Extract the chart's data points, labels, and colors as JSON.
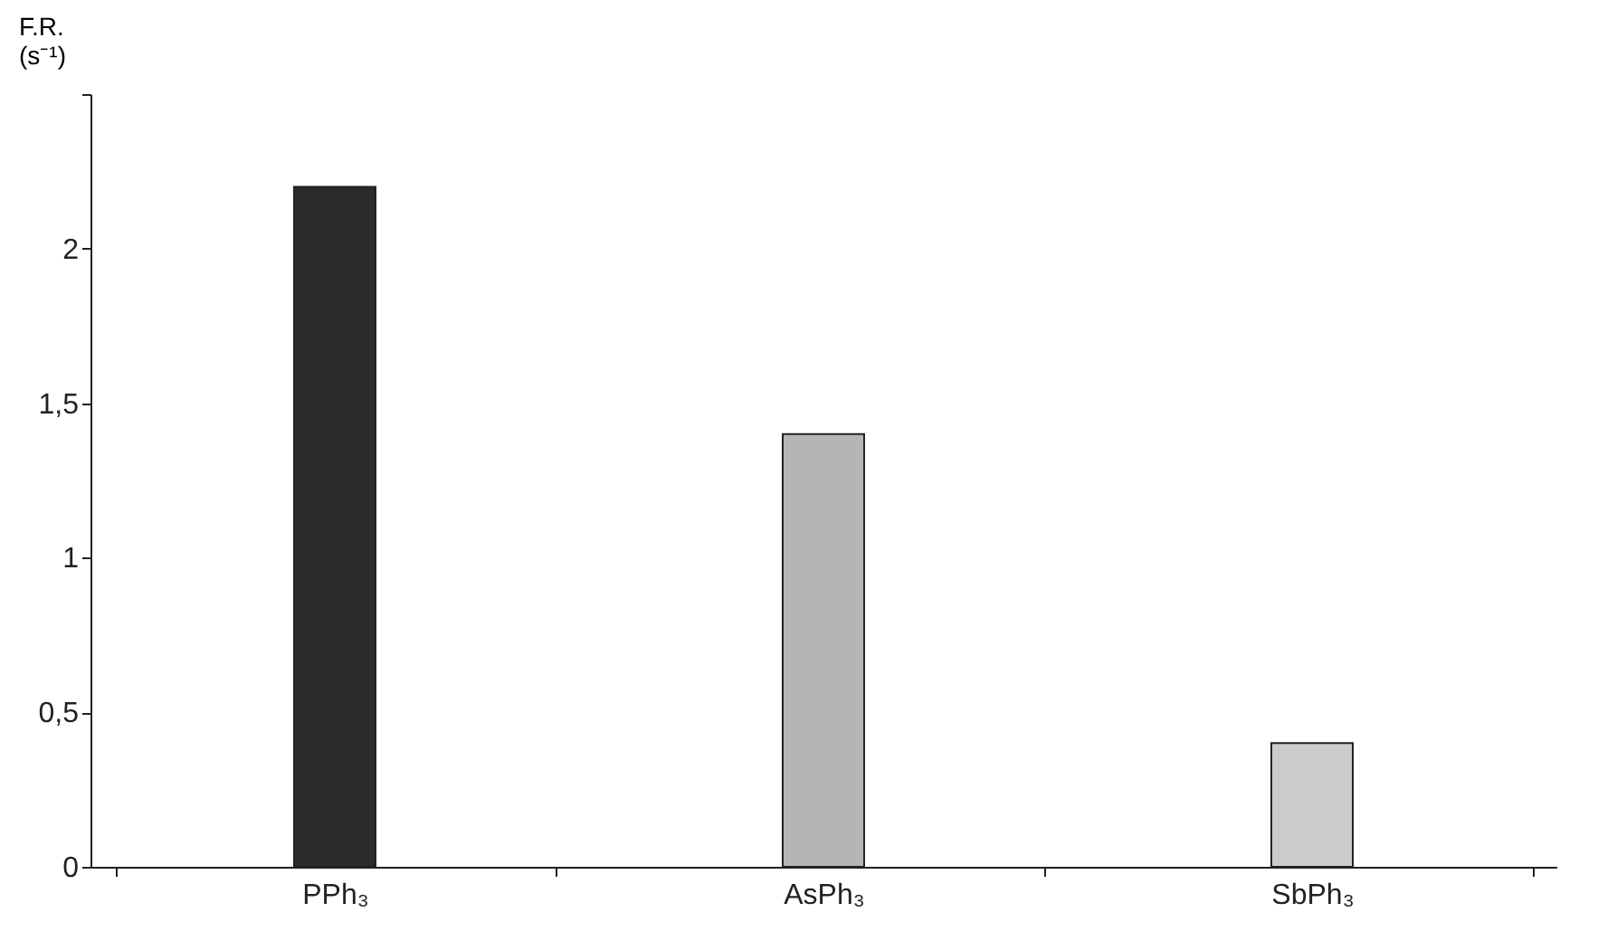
{
  "chart_data": {
    "type": "bar",
    "ylabel": "F.R. (s⁻¹)",
    "categories": [
      "PPh₃",
      "AsPh₃",
      "SbPh₃"
    ],
    "values": [
      2.2,
      1.4,
      0.4
    ],
    "colors": [
      "#2b2b2b",
      "#b5b5b5",
      "#cccccc"
    ],
    "ylim": [
      0,
      2.5
    ],
    "yticks": [
      0,
      {
        "value": 0.5,
        "label": "0,5"
      },
      1,
      {
        "value": 1.5,
        "label": "1,5"
      },
      2,
      {
        "value": 2.5,
        "label": null
      }
    ],
    "grid": false
  }
}
